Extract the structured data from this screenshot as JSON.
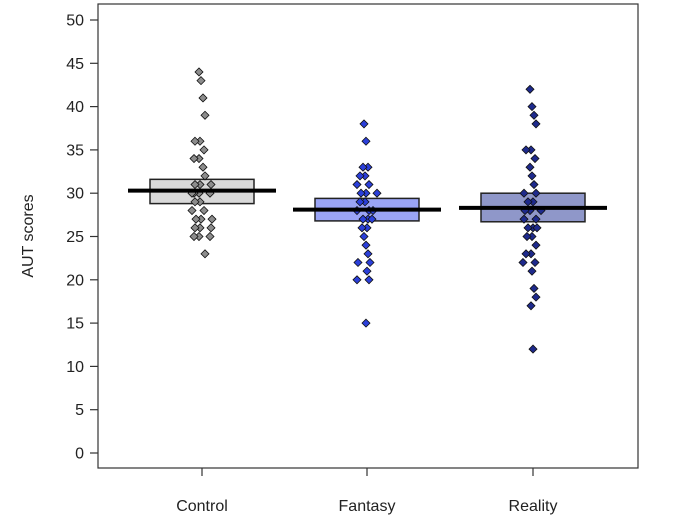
{
  "chart_data": {
    "type": "scatter",
    "subtype": "dot-strip with mean and confidence-interval boxes",
    "title": "",
    "xlabel": "",
    "ylabel": "AUT scores",
    "ylim": [
      0,
      50
    ],
    "yticks": [
      0,
      5,
      10,
      15,
      20,
      25,
      30,
      35,
      40,
      45,
      50
    ],
    "grid": false,
    "categories": [
      "Control",
      "Fantasy",
      "Reality"
    ],
    "series": [
      {
        "name": "Control",
        "mean": 30.3,
        "ci_low": 28.8,
        "ci_high": 31.6,
        "box_color": "#d9d9d9",
        "point_color": "#8c8c8c",
        "values": [
          44,
          43,
          41,
          39,
          36,
          36,
          35,
          34,
          34,
          33,
          32,
          31,
          31,
          31,
          30,
          30,
          30,
          30,
          29,
          29,
          28,
          28,
          27,
          27,
          27,
          26,
          26,
          26,
          25,
          25,
          25,
          23
        ]
      },
      {
        "name": "Fantasy",
        "mean": 28.1,
        "ci_low": 26.8,
        "ci_high": 29.4,
        "box_color": "#9aa4f5",
        "point_color": "#2b3fd9",
        "values": [
          38,
          36,
          33,
          33,
          32,
          32,
          31,
          31,
          30,
          30,
          30,
          29,
          29,
          28,
          28,
          28,
          27,
          27,
          27,
          26,
          26,
          25,
          24,
          23,
          22,
          22,
          21,
          20,
          20,
          15
        ]
      },
      {
        "name": "Reality",
        "mean": 28.3,
        "ci_low": 26.7,
        "ci_high": 30.0,
        "box_color": "#8f97c9",
        "point_color": "#1e2a8c",
        "values": [
          42,
          40,
          39,
          38,
          35,
          35,
          34,
          33,
          32,
          31,
          30,
          30,
          29,
          29,
          28,
          28,
          28,
          27,
          27,
          26,
          26,
          26,
          25,
          25,
          24,
          23,
          23,
          22,
          22,
          21,
          19,
          18,
          17,
          12
        ]
      }
    ]
  }
}
